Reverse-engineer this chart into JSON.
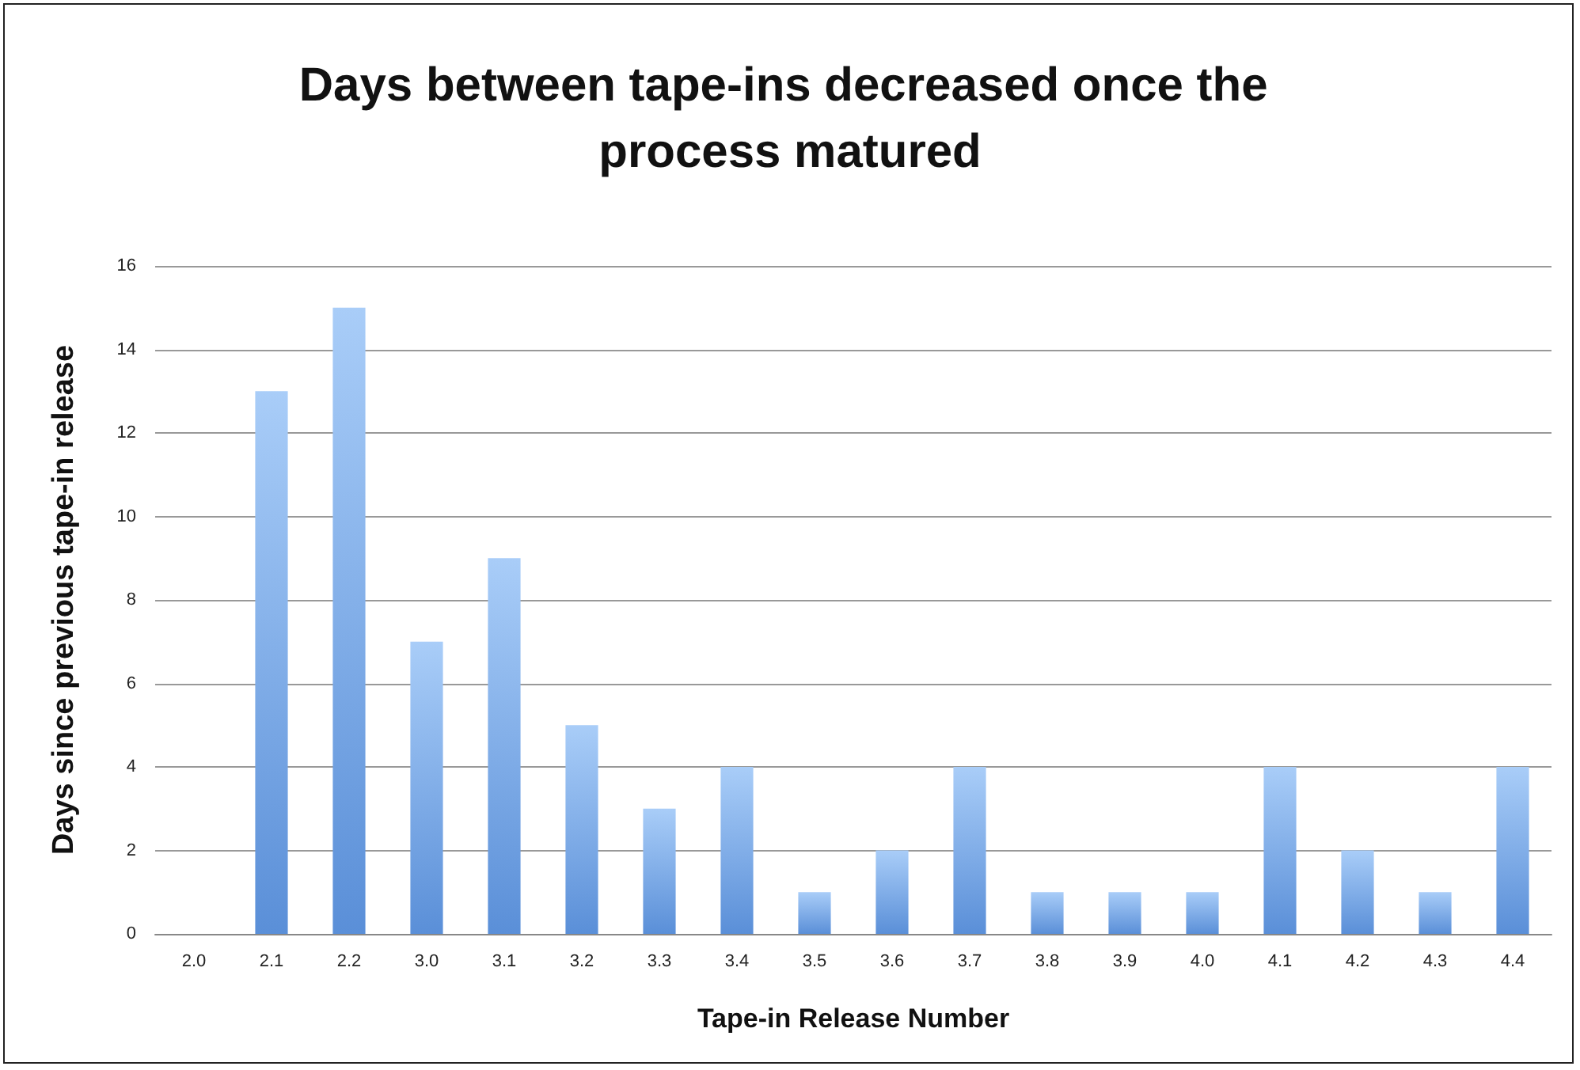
{
  "chart_data": {
    "type": "bar",
    "title": "Days between tape-ins decreased once the process matured",
    "xlabel": "Tape-in Release Number",
    "ylabel": "Days since previous tape-in release",
    "categories": [
      "2.0",
      "2.1",
      "2.2",
      "3.0",
      "3.1",
      "3.2",
      "3.3",
      "3.4",
      "3.5",
      "3.6",
      "3.7",
      "3.8",
      "3.9",
      "4.0",
      "4.1",
      "4.2",
      "4.3",
      "4.4"
    ],
    "values": [
      0,
      13,
      15,
      7,
      9,
      5,
      3,
      4,
      1,
      2,
      4,
      1,
      1,
      1,
      4,
      2,
      1,
      4
    ],
    "color": "#5a8fd8",
    "ylim": [
      0,
      16
    ],
    "yticks": [
      0,
      2,
      4,
      6,
      8,
      10,
      12,
      14,
      16
    ],
    "grid": "y"
  }
}
